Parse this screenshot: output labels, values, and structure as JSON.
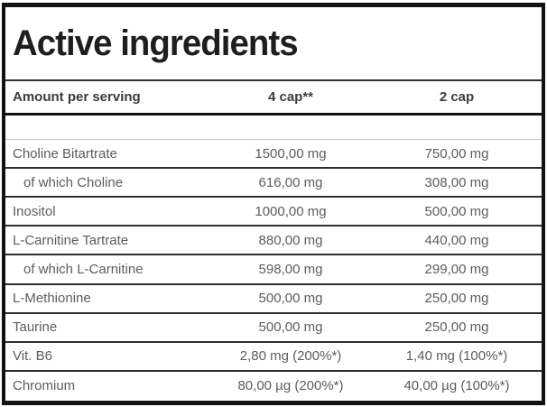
{
  "panel": {
    "title": "Active ingredients",
    "header": {
      "col1": "Amount per serving",
      "col2": "4 cap**",
      "col3": "2 cap"
    },
    "rows": [
      {
        "name": "Choline Bitartrate",
        "cap4": "1500,00 mg",
        "cap2": "750,00 mg"
      },
      {
        "name": "of which Choline",
        "cap4": "616,00 mg",
        "cap2": "308,00 mg"
      },
      {
        "name": "Inositol",
        "cap4": "1000,00 mg",
        "cap2": "500,00 mg"
      },
      {
        "name": "L-Carnitine Tartrate",
        "cap4": "880,00 mg",
        "cap2": "440,00 mg"
      },
      {
        "name": "of which L-Carnitine",
        "cap4": "598,00 mg",
        "cap2": "299,00 mg"
      },
      {
        "name": "L-Methionine",
        "cap4": "500,00 mg",
        "cap2": "250,00 mg"
      },
      {
        "name": "Taurine",
        "cap4": "500,00 mg",
        "cap2": "250,00 mg"
      },
      {
        "name": "Vit. B6",
        "cap4": "2,80 mg (200%*)",
        "cap2": "1,40 mg (100%*)"
      },
      {
        "name": "Chromium",
        "cap4": "80,00 µg (200%*)",
        "cap2": "40,00 µg (100%*)"
      }
    ],
    "colors": {
      "frame": "#121212",
      "title_text": "#1e1e1e",
      "header_text": "#3c3c3c",
      "row_text": "#5d5d5d",
      "row_divider": "#2e2e2e",
      "spacer_divider": "#c6c6c6",
      "background": "#ffffff"
    }
  }
}
